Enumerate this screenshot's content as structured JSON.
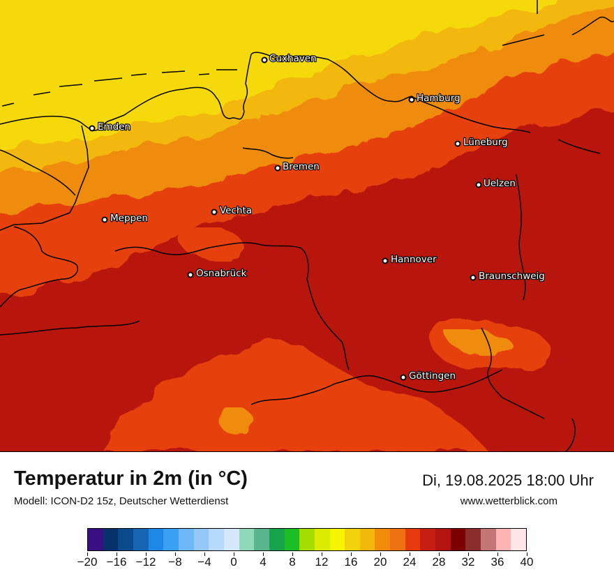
{
  "title": "Temperatur in 2m (in °C)",
  "model": "Modell: ICON-D2 15z, Deutscher Wetterdienst",
  "datetime": "Di, 19.08.2025 18:00 Uhr",
  "site": "www.wetterblick.com",
  "cities": [
    "Cuxhaven",
    "Hamburg",
    "Emden",
    "Lüneburg",
    "Bremen",
    "Uelzen",
    "Vechta",
    "Meppen",
    "Hannover",
    "Osnabrück",
    "Braunschweig",
    "Göttingen"
  ],
  "legend": {
    "ticks": [
      "−20",
      "−16",
      "−12",
      "−8",
      "−4",
      "0",
      "4",
      "8",
      "12",
      "16",
      "20",
      "24",
      "28",
      "32",
      "36",
      "40"
    ],
    "colors": [
      "#3b0f84",
      "#08306b",
      "#0b4a8c",
      "#1766b5",
      "#1f87e6",
      "#3aa0f2",
      "#6fb8f7",
      "#93c8f8",
      "#b8dafa",
      "#d4e7fb",
      "#8fd9b9",
      "#5bb58c",
      "#16a34a",
      "#1cbe28",
      "#a6dc00",
      "#dcec00",
      "#f5f500",
      "#f2d20a",
      "#f2b80a",
      "#f08c0a",
      "#f07014",
      "#e63a0e",
      "#c81d12",
      "#b4140f",
      "#7d0000",
      "#8c2d2d",
      "#c47575",
      "#ffb4b4",
      "#ffe6e6"
    ]
  }
}
